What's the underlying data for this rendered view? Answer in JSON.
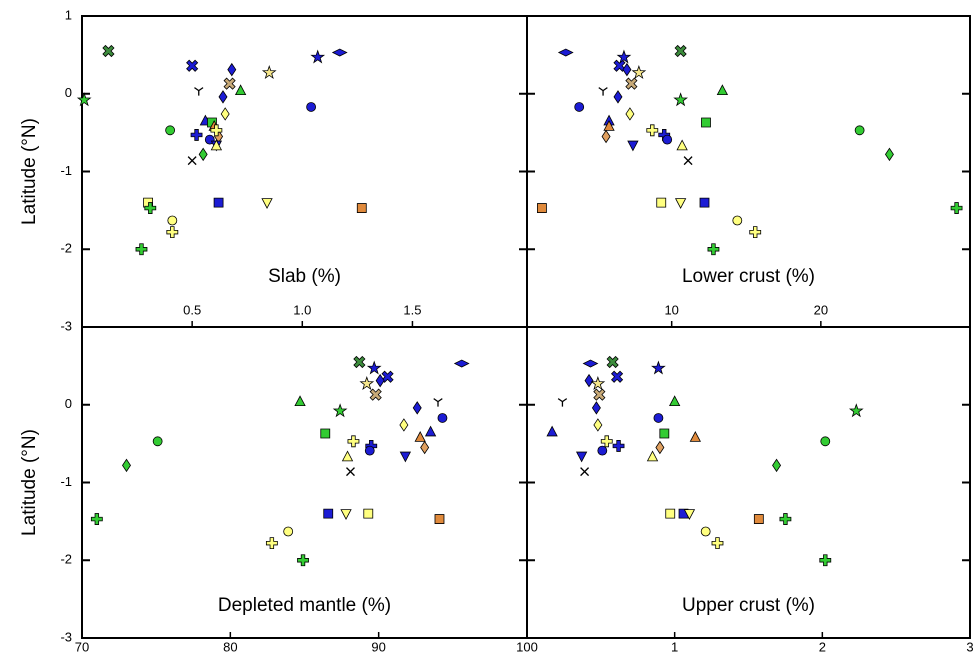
{
  "chart_data": [
    {
      "type": "scatter",
      "xlabel": "Slab (%)",
      "ylabel": "Latitude (°N)",
      "xlim": [
        0,
        2.02
      ],
      "xticks": [
        0.5,
        {
          "value": 1,
          "label": "1.0"
        },
        1.5
      ],
      "ylim": [
        -3,
        1
      ],
      "yticks": [
        1,
        0,
        -1,
        -2,
        -3
      ],
      "markers": [
        "x",
        "star",
        "x",
        "y",
        "diamond",
        "x",
        "triangle",
        "star",
        "star",
        "thin_diamond",
        "circle",
        "diamond",
        "diamond",
        "circle",
        "triangle",
        "square",
        "triangle",
        "plus",
        "diamond",
        "plus",
        "circle",
        "triangle_down",
        "triangle",
        "diamond",
        "cross",
        "square",
        "plus",
        "square",
        "triangle_down",
        "square",
        "circle",
        "plus",
        "plus"
      ],
      "colors": [
        "#3c8c3c",
        "#33cc33",
        "#1c1cd4",
        "#000000",
        "#1c1cd4",
        "#c8aa78",
        "#33cc33",
        "#f5e68c",
        "#1c1cd4",
        "#1c1cd4",
        "#1c1cd4",
        "#1c1cd4",
        "#ffff80",
        "#33cc33",
        "#1c1cd4",
        "#33cc33",
        "#e08a3c",
        "#1c1cd4",
        "#e0a060",
        "#ffff80",
        "#1c1cd4",
        "#1c1cd4",
        "#ffff80",
        "#33cc33",
        "#000000",
        "#ffff80",
        "#33cc33",
        "#1c1cd4",
        "#ffff80",
        "#e08a3c",
        "#ffff80",
        "#ffff80",
        "#33cc33"
      ],
      "x": [
        0.12,
        0.01,
        0.5,
        0.53,
        0.68,
        0.67,
        0.72,
        0.85,
        1.07,
        1.17,
        1.04,
        0.64,
        0.65,
        0.4,
        0.56,
        0.59,
        0.6,
        0.52,
        0.62,
        0.61,
        0.58,
        0.61,
        0.61,
        0.55,
        0.5,
        0.3,
        0.31,
        0.62,
        0.84,
        1.27,
        0.41,
        0.41,
        0.27
      ],
      "y": [
        0.55,
        -0.08,
        0.36,
        0.04,
        0.31,
        0.13,
        0.04,
        0.27,
        0.47,
        0.53,
        -0.17,
        -0.04,
        -0.26,
        -0.47,
        -0.35,
        -0.37,
        -0.42,
        -0.53,
        -0.55,
        -0.47,
        -0.59,
        -0.66,
        -0.67,
        -0.78,
        -0.86,
        -1.4,
        -1.47,
        -1.4,
        -1.4,
        -1.47,
        -1.63,
        -1.78,
        -2.0
      ]
    },
    {
      "type": "scatter",
      "xlabel": "Lower crust (%)",
      "xlim": [
        0.3,
        30
      ],
      "xticks": [
        10,
        20
      ],
      "ylim": [
        -3,
        1
      ],
      "markers": [
        "x",
        "star",
        "x",
        "y",
        "diamond",
        "x",
        "triangle",
        "star",
        "star",
        "thin_diamond",
        "circle",
        "diamond",
        "diamond",
        "circle",
        "triangle",
        "square",
        "triangle",
        "plus",
        "diamond",
        "plus",
        "circle",
        "triangle_down",
        "triangle",
        "diamond",
        "cross",
        "square",
        "plus",
        "square",
        "triangle_down",
        "square",
        "circle",
        "plus",
        "plus"
      ],
      "colors": [
        "#3c8c3c",
        "#33cc33",
        "#1c1cd4",
        "#000000",
        "#1c1cd4",
        "#c8aa78",
        "#33cc33",
        "#f5e68c",
        "#1c1cd4",
        "#1c1cd4",
        "#1c1cd4",
        "#1c1cd4",
        "#ffff80",
        "#33cc33",
        "#1c1cd4",
        "#33cc33",
        "#e08a3c",
        "#1c1cd4",
        "#e0a060",
        "#ffff80",
        "#1c1cd4",
        "#1c1cd4",
        "#ffff80",
        "#33cc33",
        "#000000",
        "#ffff80",
        "#33cc33",
        "#1c1cd4",
        "#ffff80",
        "#e08a3c",
        "#ffff80",
        "#ffff80",
        "#33cc33"
      ],
      "x": [
        10.6,
        10.6,
        6.5,
        5.4,
        7.0,
        7.3,
        13.4,
        7.8,
        6.8,
        2.9,
        3.8,
        6.4,
        7.2,
        22.6,
        5.8,
        12.3,
        5.8,
        9.5,
        5.6,
        8.7,
        9.7,
        7.4,
        10.7,
        24.6,
        11.1,
        9.3,
        29.1,
        12.2,
        10.6,
        1.3,
        14.4,
        15.6,
        12.8
      ],
      "y": [
        0.55,
        -0.08,
        0.36,
        0.04,
        0.31,
        0.13,
        0.04,
        0.27,
        0.47,
        0.53,
        -0.17,
        -0.04,
        -0.26,
        -0.47,
        -0.35,
        -0.37,
        -0.42,
        -0.53,
        -0.55,
        -0.47,
        -0.59,
        -0.66,
        -0.67,
        -0.78,
        -0.86,
        -1.4,
        -1.47,
        -1.4,
        -1.4,
        -1.47,
        -1.63,
        -1.78,
        -2.0
      ]
    },
    {
      "type": "scatter",
      "xlabel": "Depleted mantle (%)",
      "ylabel": "Latitude (°N)",
      "xlim": [
        70,
        100
      ],
      "xticks": [
        70,
        80,
        90,
        100
      ],
      "ylim": [
        -3,
        1
      ],
      "yticks": [
        0,
        -1,
        -2,
        -3
      ],
      "markers": [
        "x",
        "star",
        "x",
        "y",
        "diamond",
        "x",
        "triangle",
        "star",
        "star",
        "thin_diamond",
        "circle",
        "diamond",
        "diamond",
        "circle",
        "triangle",
        "square",
        "triangle",
        "plus",
        "diamond",
        "plus",
        "circle",
        "triangle_down",
        "triangle",
        "diamond",
        "cross",
        "square",
        "plus",
        "square",
        "triangle_down",
        "square",
        "circle",
        "plus",
        "plus"
      ],
      "colors": [
        "#3c8c3c",
        "#33cc33",
        "#1c1cd4",
        "#000000",
        "#1c1cd4",
        "#c8aa78",
        "#33cc33",
        "#f5e68c",
        "#1c1cd4",
        "#1c1cd4",
        "#1c1cd4",
        "#1c1cd4",
        "#ffff80",
        "#33cc33",
        "#1c1cd4",
        "#33cc33",
        "#e08a3c",
        "#1c1cd4",
        "#e0a060",
        "#ffff80",
        "#1c1cd4",
        "#1c1cd4",
        "#ffff80",
        "#33cc33",
        "#000000",
        "#ffff80",
        "#33cc33",
        "#1c1cd4",
        "#ffff80",
        "#e08a3c",
        "#ffff80",
        "#ffff80",
        "#33cc33"
      ],
      "x": [
        88.7,
        87.4,
        90.6,
        94.0,
        90.1,
        89.8,
        84.7,
        89.2,
        89.7,
        95.6,
        94.3,
        92.6,
        91.7,
        75.1,
        93.5,
        86.4,
        92.8,
        89.5,
        93.1,
        88.3,
        89.4,
        91.8,
        87.9,
        73.0,
        88.1,
        89.3,
        71.0,
        86.6,
        87.8,
        94.1,
        83.9,
        82.8,
        84.9
      ],
      "y": [
        0.55,
        -0.08,
        0.36,
        0.04,
        0.31,
        0.13,
        0.04,
        0.27,
        0.47,
        0.53,
        -0.17,
        -0.04,
        -0.26,
        -0.47,
        -0.35,
        -0.37,
        -0.42,
        -0.53,
        -0.55,
        -0.47,
        -0.59,
        -0.66,
        -0.67,
        -0.78,
        -0.86,
        -1.4,
        -1.47,
        -1.4,
        -1.4,
        -1.47,
        -1.63,
        -1.78,
        -2.0
      ]
    },
    {
      "type": "scatter",
      "xlabel": "Upper crust (%)",
      "xlim": [
        0,
        3
      ],
      "xticks": [
        1,
        2,
        3
      ],
      "ylim": [
        -3,
        1
      ],
      "markers": [
        "x",
        "star",
        "x",
        "y",
        "diamond",
        "x",
        "triangle",
        "star",
        "star",
        "thin_diamond",
        "circle",
        "diamond",
        "diamond",
        "circle",
        "triangle",
        "square",
        "triangle",
        "plus",
        "diamond",
        "plus",
        "circle",
        "triangle_down",
        "triangle",
        "diamond",
        "cross",
        "square",
        "plus",
        "square",
        "triangle_down",
        "square",
        "circle",
        "plus",
        "plus"
      ],
      "colors": [
        "#3c8c3c",
        "#33cc33",
        "#1c1cd4",
        "#000000",
        "#1c1cd4",
        "#c8aa78",
        "#33cc33",
        "#f5e68c",
        "#1c1cd4",
        "#1c1cd4",
        "#1c1cd4",
        "#1c1cd4",
        "#ffff80",
        "#33cc33",
        "#1c1cd4",
        "#33cc33",
        "#e08a3c",
        "#1c1cd4",
        "#e0a060",
        "#ffff80",
        "#1c1cd4",
        "#1c1cd4",
        "#ffff80",
        "#33cc33",
        "#000000",
        "#ffff80",
        "#33cc33",
        "#1c1cd4",
        "#ffff80",
        "#e08a3c",
        "#ffff80",
        "#ffff80",
        "#33cc33"
      ],
      "x": [
        0.58,
        2.23,
        0.61,
        0.24,
        0.42,
        0.49,
        1.0,
        0.48,
        0.89,
        0.43,
        0.89,
        0.47,
        0.48,
        2.02,
        0.17,
        0.93,
        1.14,
        0.62,
        0.9,
        0.54,
        0.51,
        0.37,
        0.85,
        1.69,
        0.39,
        0.97,
        1.75,
        1.06,
        1.1,
        1.57,
        1.21,
        1.29,
        2.02
      ],
      "y": [
        0.55,
        -0.08,
        0.36,
        0.04,
        0.31,
        0.13,
        0.04,
        0.27,
        0.47,
        0.53,
        -0.17,
        -0.04,
        -0.26,
        -0.47,
        -0.35,
        -0.37,
        -0.42,
        -0.53,
        -0.55,
        -0.47,
        -0.59,
        -0.66,
        -0.67,
        -0.78,
        -0.86,
        -1.4,
        -1.47,
        -1.4,
        -1.4,
        -1.47,
        -1.63,
        -1.78,
        -2.0
      ]
    }
  ]
}
